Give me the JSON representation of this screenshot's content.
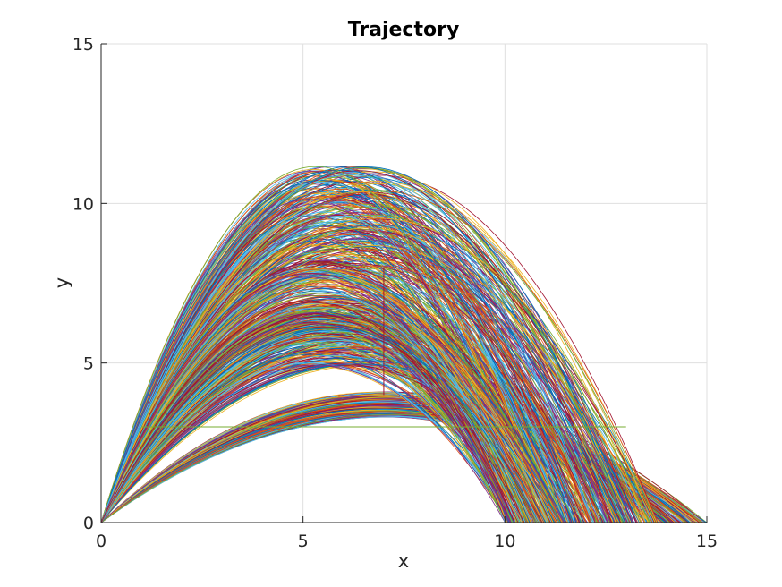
{
  "chart_data": {
    "type": "line",
    "title": "Trajectory",
    "xlabel": "x",
    "ylabel": "y",
    "xlim": [
      0,
      15
    ],
    "ylim": [
      0,
      15
    ],
    "xticks": [
      "0",
      "5",
      "10",
      "15"
    ],
    "yticks": [
      "0",
      "5",
      "10",
      "15"
    ],
    "xtick_values": [
      0,
      5,
      10,
      15
    ],
    "ytick_values": [
      0,
      5,
      10,
      15
    ],
    "grid": true,
    "legend": "none",
    "colors": [
      "#0072bd",
      "#d95319",
      "#edb120",
      "#7e2f8e",
      "#77ac30",
      "#4dbeee",
      "#a2142f"
    ],
    "series_groups": [
      {
        "family": "low",
        "apex_x": [
          5.8,
          7.2
        ],
        "apex_y": [
          3.3,
          4.1
        ],
        "x_end": [
          13.5,
          15
        ],
        "count": 180
      },
      {
        "family": "mid",
        "apex_x": [
          5.6,
          7.0
        ],
        "apex_y": [
          4.9,
          7.0
        ],
        "x_end": [
          10.0,
          13.2
        ],
        "count": 260
      },
      {
        "family": "high",
        "apex_x": [
          6.2,
          7.4
        ],
        "apex_y": [
          7.8,
          11.2
        ],
        "x_end": [
          10.0,
          13.8
        ],
        "count": 280
      },
      {
        "family": "steep",
        "apex_x": [
          5.8,
          6.8
        ],
        "apex_y": [
          6.0,
          8.0
        ],
        "x_end": [
          10.0,
          11.5
        ],
        "count": 120
      }
    ],
    "reference_lines": [
      {
        "x": [
          7,
          7
        ],
        "y": [
          4.0,
          8.0
        ],
        "color": "#a2142f"
      },
      {
        "x": [
          1,
          13
        ],
        "y": [
          3.0,
          3.0
        ],
        "color": "#77ac30"
      }
    ]
  }
}
